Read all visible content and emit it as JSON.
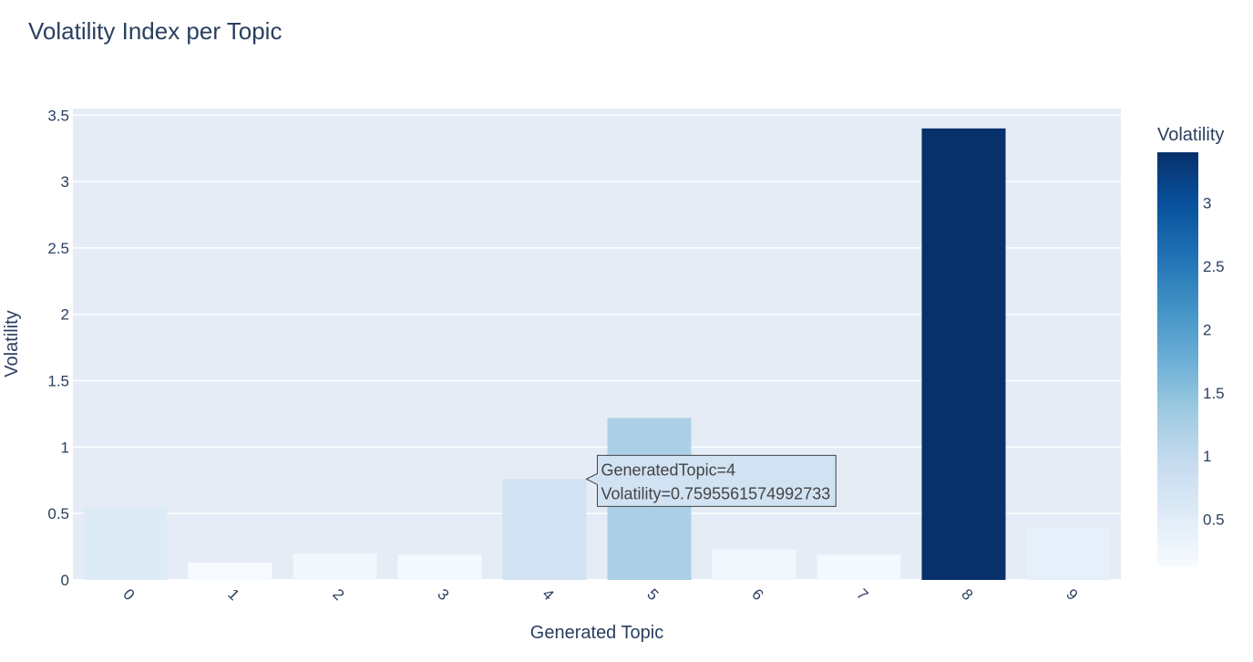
{
  "chart_data": {
    "type": "bar",
    "title": "Volatility Index per Topic",
    "xlabel": "Generated Topic",
    "ylabel": "Volatility",
    "categories": [
      "0",
      "1",
      "2",
      "3",
      "4",
      "5",
      "6",
      "7",
      "8",
      "9"
    ],
    "values": [
      0.55,
      0.13,
      0.2,
      0.19,
      0.7595561574992733,
      1.22,
      0.23,
      0.19,
      3.4,
      0.4
    ],
    "ylim": [
      0,
      3.55
    ],
    "yticks": [
      0,
      0.5,
      1,
      1.5,
      2,
      2.5,
      3,
      3.5
    ],
    "grid": true,
    "colorscale": "Blues",
    "colorbar": {
      "title": "Volatility",
      "range": [
        0.13,
        3.4
      ],
      "ticks": [
        0.5,
        1,
        1.5,
        2,
        2.5,
        3
      ]
    },
    "tooltip": {
      "category": "4",
      "line1": "GeneratedTopic=4",
      "line2": "Volatility=0.7595561574992733"
    }
  }
}
